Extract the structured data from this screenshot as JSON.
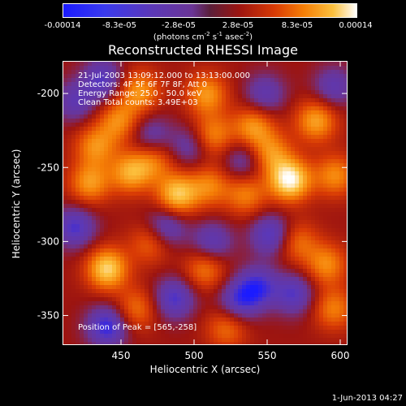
{
  "colorbar": {
    "ticks": [
      "-0.00014",
      "-8.3e-05",
      "-2.8e-05",
      "2.8e-05",
      "8.3e-05",
      "0.00014"
    ],
    "unit_prefix": "(photons cm",
    "unit_exp1": "-2",
    "unit_mid": " s",
    "unit_exp2": "-1",
    "unit_asec": " asec",
    "unit_exp3": "-2",
    "unit_suffix": ")",
    "colors": [
      "#1b1bff",
      "#5b38b8",
      "#6a3596",
      "#9c1410",
      "#d83a05",
      "#f57e06",
      "#fcc03d",
      "#ffffff"
    ]
  },
  "chart_data": {
    "type": "heatmap",
    "title": "Reconstructed RHESSI Image",
    "xlabel": "Heliocentric X (arcsec)",
    "ylabel": "Heliocentric Y (arcsec)",
    "xlim": [
      410,
      605
    ],
    "ylim": [
      -370,
      -178
    ],
    "xticks": [
      450,
      500,
      550,
      600
    ],
    "yticks": [
      -200,
      -250,
      -300,
      -350
    ],
    "value_range": [
      -0.00014,
      0.00014
    ],
    "peak": [
      565,
      -258
    ],
    "annotations": {
      "time_range": "21-Jul-2003 13:09:12.000 to 13:13:00.000",
      "detectors": "Detectors: 4F 5F 6F 7F 8F, Att 0",
      "energy_range": "Energy Range: 25.0 - 50.0 keV",
      "method_counts": "Clean    Total counts: 3.49E+03",
      "peak_label": "Position of Peak = [565,-258]"
    },
    "blobs": [
      {
        "x": 565,
        "y": -258,
        "v": 1.0
      },
      {
        "x": 440,
        "y": -318,
        "v": 0.85
      },
      {
        "x": 488,
        "y": -268,
        "v": 0.8
      },
      {
        "x": 456,
        "y": -253,
        "v": 0.65
      },
      {
        "x": 428,
        "y": -260,
        "v": 0.6
      },
      {
        "x": 432,
        "y": -235,
        "v": 0.55
      },
      {
        "x": 448,
        "y": -218,
        "v": 0.55
      },
      {
        "x": 462,
        "y": -198,
        "v": 0.6
      },
      {
        "x": 508,
        "y": -200,
        "v": 0.6
      },
      {
        "x": 512,
        "y": -228,
        "v": 0.55
      },
      {
        "x": 540,
        "y": -222,
        "v": 0.6
      },
      {
        "x": 552,
        "y": -240,
        "v": 0.55
      },
      {
        "x": 583,
        "y": -218,
        "v": 0.65
      },
      {
        "x": 596,
        "y": -255,
        "v": 0.55
      },
      {
        "x": 535,
        "y": -268,
        "v": 0.5
      },
      {
        "x": 510,
        "y": -262,
        "v": 0.5
      },
      {
        "x": 470,
        "y": -300,
        "v": 0.45
      },
      {
        "x": 507,
        "y": -318,
        "v": 0.5
      },
      {
        "x": 570,
        "y": -300,
        "v": 0.45
      },
      {
        "x": 590,
        "y": -315,
        "v": 0.55
      },
      {
        "x": 595,
        "y": -345,
        "v": 0.5
      },
      {
        "x": 460,
        "y": -345,
        "v": 0.45
      },
      {
        "x": 522,
        "y": -358,
        "v": 0.45
      },
      {
        "x": 472,
        "y": -245,
        "v": 0.45
      },
      {
        "x": 437,
        "y": -190,
        "v": -0.55
      },
      {
        "x": 418,
        "y": -205,
        "v": -0.45
      },
      {
        "x": 418,
        "y": -290,
        "v": -0.6
      },
      {
        "x": 440,
        "y": -357,
        "v": -0.7
      },
      {
        "x": 480,
        "y": -290,
        "v": -0.55
      },
      {
        "x": 486,
        "y": -338,
        "v": -0.6
      },
      {
        "x": 530,
        "y": -340,
        "v": -0.55
      },
      {
        "x": 543,
        "y": -330,
        "v": -0.6
      },
      {
        "x": 552,
        "y": -295,
        "v": -0.6
      },
      {
        "x": 568,
        "y": -335,
        "v": -0.55
      },
      {
        "x": 512,
        "y": -300,
        "v": -0.5
      },
      {
        "x": 548,
        "y": -200,
        "v": -0.45
      },
      {
        "x": 595,
        "y": -195,
        "v": -0.45
      },
      {
        "x": 533,
        "y": -245,
        "v": -0.4
      },
      {
        "x": 497,
        "y": -235,
        "v": -0.4
      },
      {
        "x": 470,
        "y": -228,
        "v": -0.4
      }
    ]
  },
  "footer": {
    "timestamp": "1-Jun-2013 04:27"
  }
}
